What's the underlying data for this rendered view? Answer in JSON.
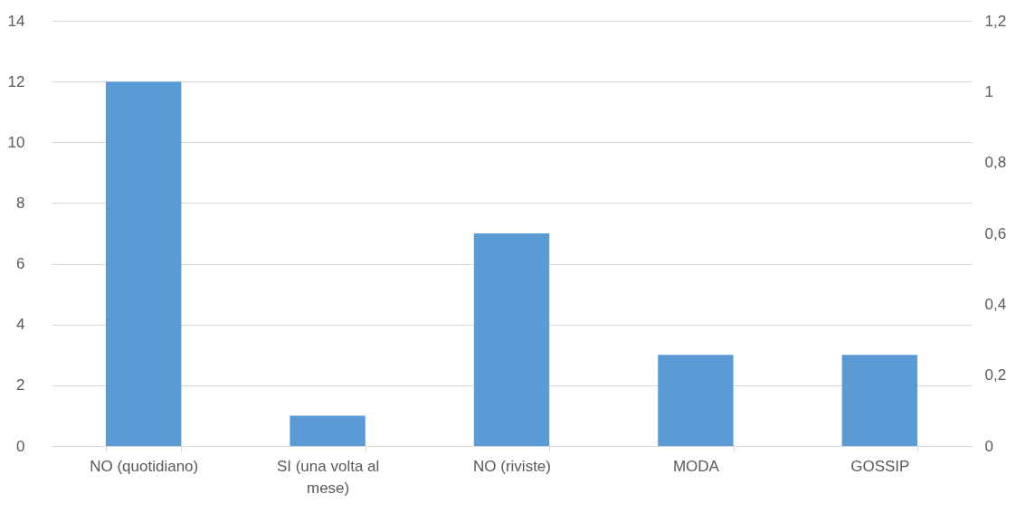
{
  "chart_data": {
    "type": "bar",
    "categories": [
      "NO (quotidiano)",
      "SI (una volta al mese)",
      "NO (riviste)",
      "MODA",
      "GOSSIP"
    ],
    "values": [
      12,
      1,
      7,
      3,
      3
    ],
    "color": "#5b9bd5",
    "ylim": [
      0,
      14
    ],
    "yticks": [
      0,
      2,
      4,
      6,
      8,
      10,
      12,
      14
    ],
    "y2lim": [
      0,
      1.2
    ],
    "y2ticks": [
      0,
      {
        "value": 0.2,
        "label": "0,2"
      },
      {
        "value": 0.4,
        "label": "0,4"
      },
      {
        "value": 0.6,
        "label": "0,6"
      },
      {
        "value": 0.8,
        "label": "0,8"
      },
      1,
      {
        "value": 1.2,
        "label": "1,2"
      }
    ],
    "grid": "y"
  }
}
